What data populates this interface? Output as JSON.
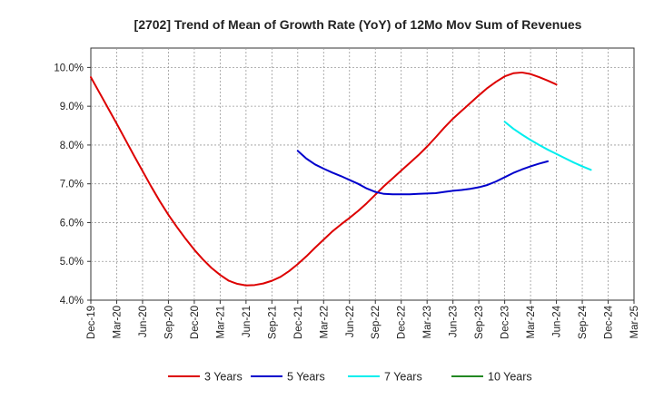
{
  "chart_data": {
    "type": "line",
    "title": "[2702]  Trend of Mean of Growth Rate (YoY) of 12Mo Mov Sum of Revenues",
    "xlabel": "",
    "ylabel": "",
    "ylim": [
      4.0,
      10.5
    ],
    "yticks": [
      4.0,
      5.0,
      6.0,
      7.0,
      8.0,
      9.0,
      10.0
    ],
    "ytick_labels": [
      "4.0%",
      "5.0%",
      "6.0%",
      "7.0%",
      "8.0%",
      "9.0%",
      "10.0%"
    ],
    "x_ticks": [
      "Dec-19",
      "Mar-20",
      "Jun-20",
      "Sep-20",
      "Dec-20",
      "Mar-21",
      "Jun-21",
      "Sep-21",
      "Dec-21",
      "Mar-22",
      "Jun-22",
      "Sep-22",
      "Dec-22",
      "Mar-23",
      "Jun-23",
      "Sep-23",
      "Dec-23",
      "Mar-24",
      "Jun-24",
      "Sep-24",
      "Dec-24",
      "Mar-25"
    ],
    "grid": true,
    "legend_position": "bottom",
    "series": [
      {
        "name": "3 Years",
        "color": "#dd0000",
        "start_index": 0,
        "values": [
          9.75,
          9.35,
          8.95,
          8.55,
          8.14,
          7.73,
          7.33,
          6.93,
          6.55,
          6.2,
          5.88,
          5.58,
          5.3,
          5.05,
          4.83,
          4.65,
          4.5,
          4.42,
          4.38,
          4.39,
          4.43,
          4.5,
          4.6,
          4.75,
          4.93,
          5.13,
          5.35,
          5.56,
          5.77,
          5.95,
          6.12,
          6.3,
          6.5,
          6.72,
          6.94,
          7.14,
          7.34,
          7.54,
          7.74,
          7.96,
          8.2,
          8.45,
          8.68,
          8.88,
          9.08,
          9.28,
          9.47,
          9.63,
          9.77,
          9.85,
          9.87,
          9.83,
          9.75,
          9.66,
          9.56
        ]
      },
      {
        "name": "5 Years",
        "color": "#0000cc",
        "start_index": 24,
        "values": [
          7.85,
          7.65,
          7.5,
          7.39,
          7.29,
          7.2,
          7.1,
          7.0,
          6.88,
          6.79,
          6.74,
          6.73,
          6.73,
          6.73,
          6.74,
          6.75,
          6.76,
          6.79,
          6.82,
          6.84,
          6.87,
          6.91,
          6.97,
          7.06,
          7.17,
          7.28,
          7.37,
          7.45,
          7.52,
          7.58
        ]
      },
      {
        "name": "7 Years",
        "color": "#00eeee",
        "start_index": 48,
        "values": [
          8.6,
          8.42,
          8.27,
          8.13,
          8.0,
          7.88,
          7.77,
          7.66,
          7.55,
          7.45,
          7.36
        ]
      },
      {
        "name": "10 Years",
        "color": "#228822",
        "start_index": 0,
        "values": []
      }
    ]
  }
}
